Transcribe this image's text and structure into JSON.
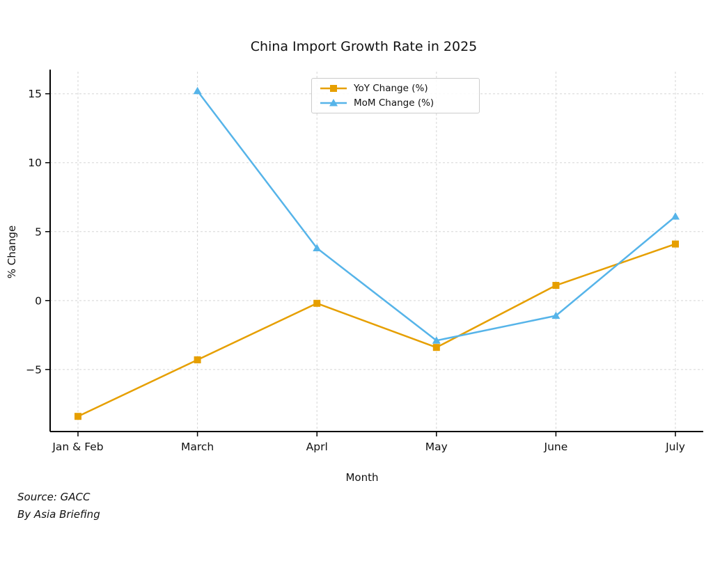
{
  "title": "China Import Growth Rate in 2025",
  "source": {
    "line1": "Source: GACC",
    "line2": "By Asia Briefing"
  },
  "chart_data": {
    "type": "line",
    "title": "China Import Growth Rate in 2025",
    "xlabel": "Month",
    "ylabel": "% Change",
    "categories": [
      "Jan & Feb",
      "March",
      "Aprl",
      "May",
      "June",
      "July"
    ],
    "series": [
      {
        "name": "YoY Change (%)",
        "color": "#E69F00",
        "marker": "square",
        "values": [
          -8.4,
          -4.3,
          -0.2,
          -3.4,
          1.1,
          4.1
        ]
      },
      {
        "name": "MoM Change (%)",
        "color": "#56B4E9",
        "marker": "triangle",
        "values": [
          null,
          15.2,
          3.8,
          -2.9,
          -1.1,
          6.1
        ]
      }
    ],
    "yticks": [
      15,
      10,
      5,
      0,
      -5
    ],
    "ylim": [
      -9.5,
      16.6
    ],
    "grid": true,
    "grid_style": "dashed",
    "legend_position": "top-center",
    "annotations": [
      "Source: GACC",
      "By Asia Briefing"
    ]
  }
}
